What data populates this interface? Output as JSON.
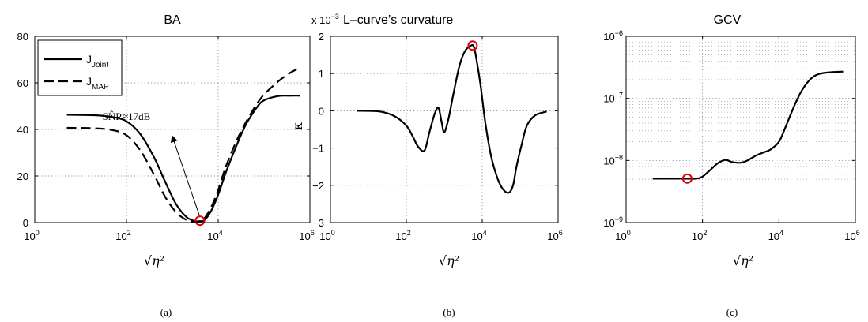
{
  "captions": [
    "(a)",
    "(b)",
    "(c)"
  ],
  "xlabel": "√η²",
  "chart_data": [
    {
      "type": "line",
      "title": "BA",
      "xscale": "log",
      "xlim": [
        1,
        1000000
      ],
      "ylim": [
        0,
        80
      ],
      "xticks": [
        1,
        100,
        10000,
        1000000
      ],
      "yticks": [
        0,
        20,
        40,
        60,
        80
      ],
      "ytick_labels": [
        "0",
        "20",
        "40",
        "60",
        "80"
      ],
      "grid": true,
      "legend": {
        "position": "top-left",
        "entries": [
          {
            "base": "J",
            "sub": "Joint",
            "style": "solid"
          },
          {
            "base": "J",
            "sub": "MAP",
            "style": "dashed"
          }
        ]
      },
      "annotation": {
        "text": "SN̂R≈17dB",
        "arrow_from": [
          4000,
          1
        ],
        "arrow_to": [
          1000,
          37
        ],
        "text_at": [
          30,
          44
        ]
      },
      "series": [
        {
          "style": "solid",
          "x": [
            5,
            20,
            50,
            100,
            200,
            400,
            700,
            1200,
            2000,
            3000,
            4000,
            5000,
            7000,
            10000,
            15000,
            25000,
            40000,
            70000,
            100000,
            200000,
            350000,
            600000
          ],
          "y": [
            46.3,
            46.1,
            45.3,
            43.5,
            38.0,
            28.0,
            17.5,
            8.0,
            2.5,
            0.7,
            0.6,
            1.0,
            5.0,
            12.0,
            22.0,
            33.0,
            42.0,
            49.5,
            52.5,
            54.3,
            54.5,
            54.5
          ]
        },
        {
          "style": "dashed",
          "x": [
            5,
            20,
            50,
            100,
            200,
            400,
            700,
            1200,
            2000,
            3000,
            4000,
            5000,
            7000,
            10000,
            15000,
            25000,
            40000,
            70000,
            100000,
            200000,
            350000,
            600000
          ],
          "y": [
            40.7,
            40.5,
            39.7,
            37.5,
            31.0,
            20.5,
            11.0,
            4.5,
            1.2,
            0.3,
            0.4,
            1.8,
            6.5,
            14.0,
            24.5,
            35.0,
            43.0,
            51.0,
            55.0,
            60.5,
            64.0,
            66.5
          ]
        }
      ],
      "marker": {
        "x": 4000,
        "y": 0.8
      }
    },
    {
      "type": "line",
      "title": "L–curve’s curvature",
      "scale_note": "x 10",
      "scale_exponent": "−3",
      "ylabel": "κ",
      "xscale": "log",
      "xlim": [
        1,
        1000000
      ],
      "ylim": [
        -3,
        2
      ],
      "xticks": [
        1,
        100,
        10000,
        1000000
      ],
      "yticks": [
        -3,
        -2,
        -1,
        0,
        1,
        2
      ],
      "ytick_labels": [
        "−3",
        "−2",
        "−1",
        "0",
        "1",
        "2"
      ],
      "grid": true,
      "series": [
        {
          "style": "solid",
          "x": [
            5,
            20,
            50,
            100,
            150,
            200,
            300,
            400,
            550,
            700,
            850,
            1000,
            1300,
            1700,
            2500,
            3500,
            5000,
            6000,
            7000,
            9000,
            12000,
            17000,
            25000,
            35000,
            50000,
            65000,
            80000,
            110000,
            150000,
            250000,
            500000
          ],
          "y": [
            0.0,
            -0.02,
            -0.15,
            -0.4,
            -0.7,
            -0.95,
            -1.07,
            -0.6,
            -0.1,
            0.08,
            -0.3,
            -0.58,
            -0.2,
            0.4,
            1.2,
            1.6,
            1.75,
            1.72,
            1.4,
            0.7,
            -0.3,
            -1.2,
            -1.8,
            -2.1,
            -2.2,
            -2.0,
            -1.5,
            -0.9,
            -0.4,
            -0.12,
            -0.02
          ]
        }
      ],
      "marker": {
        "x": 5600,
        "y": 1.75
      }
    },
    {
      "type": "line",
      "title": "GCV",
      "xscale": "log",
      "yscale": "log",
      "xlim": [
        1,
        1000000
      ],
      "ylim": [
        1e-09,
        1e-06
      ],
      "xticks": [
        1,
        100,
        10000,
        1000000
      ],
      "yticks": [
        1e-09,
        1e-08,
        1e-07,
        1e-06
      ],
      "ytick_exponents": [
        "−9",
        "−8",
        "−7",
        "−6"
      ],
      "grid": true,
      "series": [
        {
          "style": "solid",
          "x": [
            5,
            20,
            40,
            70,
            100,
            150,
            250,
            400,
            600,
            1000,
            1500,
            2500,
            4000,
            6000,
            10000,
            15000,
            25000,
            40000,
            70000,
            120000,
            250000,
            500000
          ],
          "y": [
            5.1e-09,
            5.1e-09,
            5.1e-09,
            5.1e-09,
            5.5e-09,
            6.8e-09,
            9e-09,
            1.02e-08,
            9.4e-09,
            9.2e-09,
            1e-08,
            1.2e-08,
            1.35e-08,
            1.5e-08,
            2e-08,
            3.5e-08,
            7.5e-08,
            1.35e-07,
            2.1e-07,
            2.5e-07,
            2.65e-07,
            2.7e-07
          ]
        }
      ],
      "marker": {
        "x": 40,
        "y": 5.1e-09
      }
    }
  ]
}
